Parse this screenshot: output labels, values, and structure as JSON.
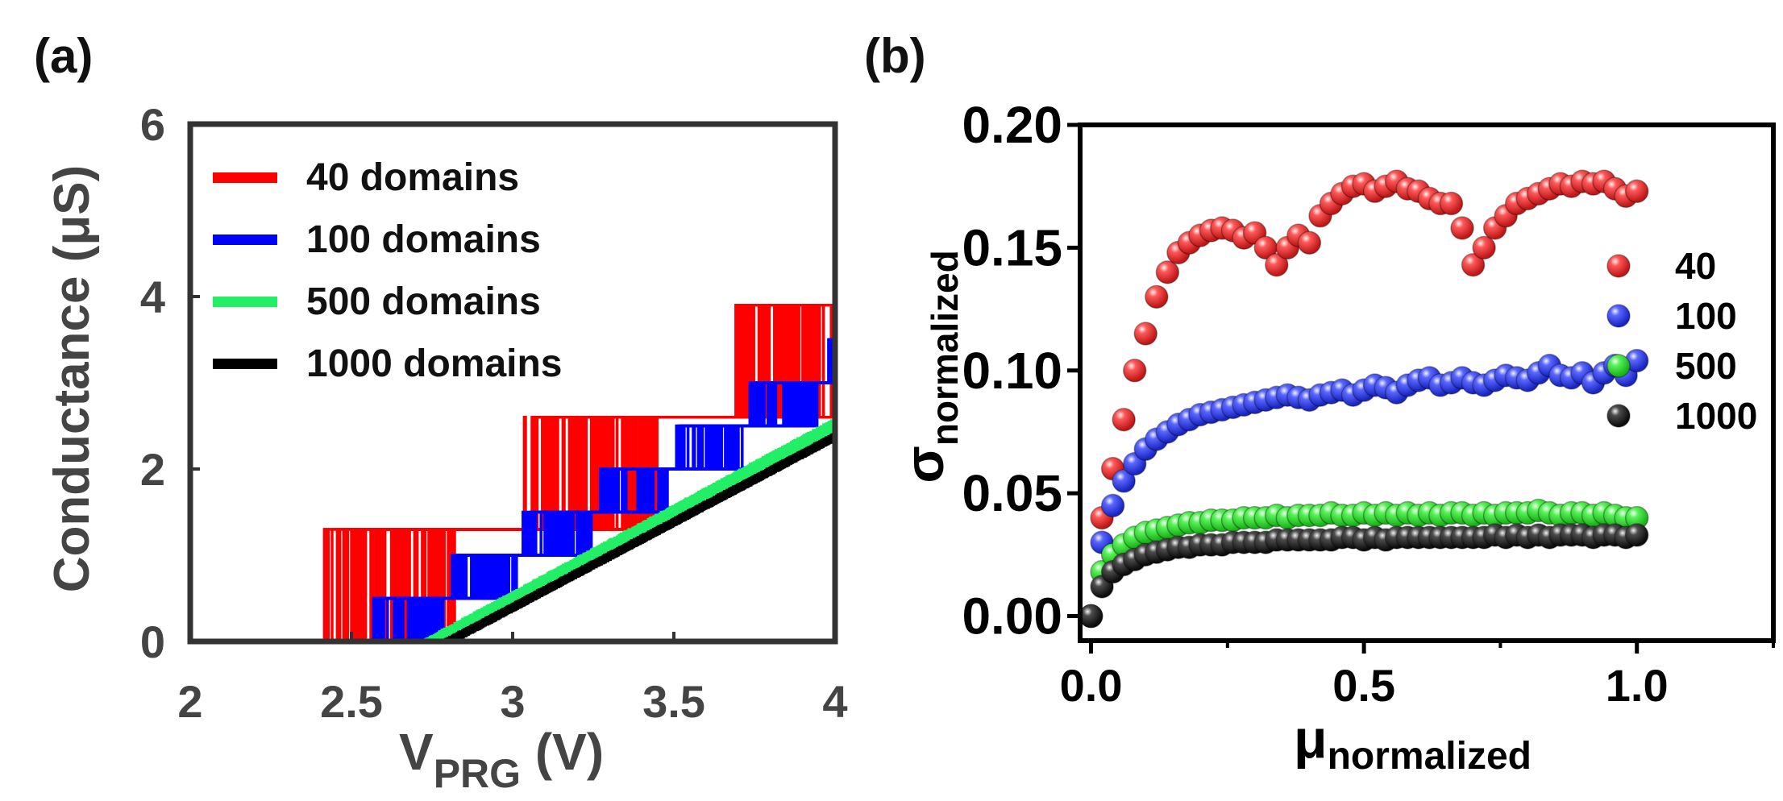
{
  "panel_a": {
    "label": "(a)",
    "chart_data": {
      "type": "line",
      "title": "",
      "xlabel_main": "V",
      "xlabel_sub": "PRG",
      "xlabel_unit": " (V)",
      "ylabel": "Conductance (μS)",
      "xlim": [
        2,
        4
      ],
      "ylim": [
        0,
        6
      ],
      "xticks": [
        2,
        2.5,
        3,
        3.5,
        4
      ],
      "xtick_labels": [
        "2",
        "2.5",
        "3",
        "3.5",
        "4"
      ],
      "yticks": [
        0,
        2,
        4,
        6
      ],
      "ytick_labels": [
        "0",
        "2",
        "4",
        "6"
      ],
      "legend_position": "top-left",
      "series": [
        {
          "name": "40 domains",
          "color": "#ff0000",
          "level_step": 1.3,
          "jitter": 0.55,
          "onset": 2.3,
          "slope": 3.3,
          "x_end": 4.0
        },
        {
          "name": "100 domains",
          "color": "#0000ff",
          "level_step": 0.5,
          "jitter": 0.32,
          "onset": 2.55,
          "slope": 3.25,
          "x_end": 4.0
        },
        {
          "name": "500 domains",
          "color": "#22ee66",
          "level_step": 0.1,
          "jitter": 0.1,
          "onset": 2.75,
          "slope": 3.05,
          "x_end": 4.0
        },
        {
          "name": "1000 domains",
          "color": "#000000",
          "level_step": 0.06,
          "jitter": 0.06,
          "onset": 2.8,
          "slope": 3.0,
          "x_end": 4.0
        }
      ]
    }
  },
  "panel_b": {
    "label": "(b)",
    "chart_data": {
      "type": "scatter",
      "title": "",
      "xlabel_main": "μ",
      "xlabel_sub": "normalized",
      "ylabel_main": "σ",
      "ylabel_sub": "normalized",
      "xlim": [
        -0.02,
        1.25
      ],
      "ylim": [
        -0.01,
        0.2
      ],
      "xticks": [
        0.0,
        0.5,
        1.0
      ],
      "xtick_labels": [
        "0.0",
        "0.5",
        "1.0"
      ],
      "yticks": [
        0.0,
        0.05,
        0.1,
        0.15,
        0.2
      ],
      "ytick_labels": [
        "0.00",
        "0.05",
        "0.10",
        "0.15",
        "0.20"
      ],
      "legend_position": "right",
      "series": [
        {
          "name": "40",
          "color": "#ff2020",
          "x": [
            0,
            0.02,
            0.04,
            0.06,
            0.08,
            0.1,
            0.12,
            0.14,
            0.16,
            0.18,
            0.2,
            0.22,
            0.24,
            0.26,
            0.28,
            0.3,
            0.32,
            0.34,
            0.36,
            0.38,
            0.4,
            0.42,
            0.44,
            0.46,
            0.48,
            0.5,
            0.52,
            0.54,
            0.56,
            0.58,
            0.6,
            0.62,
            0.64,
            0.66,
            0.68,
            0.7,
            0.72,
            0.74,
            0.76,
            0.78,
            0.8,
            0.82,
            0.84,
            0.86,
            0.88,
            0.9,
            0.92,
            0.94,
            0.96,
            0.98,
            1.0
          ],
          "y": [
            0,
            0.04,
            0.06,
            0.08,
            0.1,
            0.115,
            0.13,
            0.14,
            0.148,
            0.152,
            0.155,
            0.157,
            0.158,
            0.157,
            0.154,
            0.156,
            0.15,
            0.143,
            0.15,
            0.155,
            0.152,
            0.163,
            0.168,
            0.172,
            0.175,
            0.176,
            0.173,
            0.175,
            0.177,
            0.174,
            0.173,
            0.17,
            0.168,
            0.168,
            0.158,
            0.143,
            0.15,
            0.158,
            0.163,
            0.168,
            0.17,
            0.172,
            0.174,
            0.176,
            0.175,
            0.177,
            0.176,
            0.177,
            0.174,
            0.171,
            0.173
          ]
        },
        {
          "name": "100",
          "color": "#2233ff",
          "x": [
            0,
            0.02,
            0.04,
            0.06,
            0.08,
            0.1,
            0.12,
            0.14,
            0.16,
            0.18,
            0.2,
            0.22,
            0.24,
            0.26,
            0.28,
            0.3,
            0.32,
            0.34,
            0.36,
            0.38,
            0.4,
            0.42,
            0.44,
            0.46,
            0.48,
            0.5,
            0.52,
            0.54,
            0.56,
            0.58,
            0.6,
            0.62,
            0.64,
            0.66,
            0.68,
            0.7,
            0.72,
            0.74,
            0.76,
            0.78,
            0.8,
            0.82,
            0.84,
            0.86,
            0.88,
            0.9,
            0.92,
            0.94,
            0.96,
            0.98,
            1.0
          ],
          "y": [
            0,
            0.03,
            0.045,
            0.055,
            0.062,
            0.068,
            0.072,
            0.075,
            0.078,
            0.08,
            0.082,
            0.083,
            0.084,
            0.085,
            0.086,
            0.087,
            0.088,
            0.089,
            0.09,
            0.089,
            0.088,
            0.09,
            0.091,
            0.092,
            0.09,
            0.092,
            0.094,
            0.093,
            0.091,
            0.094,
            0.096,
            0.097,
            0.094,
            0.095,
            0.097,
            0.095,
            0.094,
            0.096,
            0.098,
            0.097,
            0.096,
            0.099,
            0.102,
            0.098,
            0.097,
            0.099,
            0.095,
            0.099,
            0.102,
            0.098,
            0.104
          ]
        },
        {
          "name": "500",
          "color": "#22ee22",
          "x": [
            0,
            0.02,
            0.04,
            0.06,
            0.08,
            0.1,
            0.12,
            0.14,
            0.16,
            0.18,
            0.2,
            0.22,
            0.24,
            0.26,
            0.28,
            0.3,
            0.32,
            0.34,
            0.36,
            0.38,
            0.4,
            0.42,
            0.44,
            0.46,
            0.48,
            0.5,
            0.52,
            0.54,
            0.56,
            0.58,
            0.6,
            0.62,
            0.64,
            0.66,
            0.68,
            0.7,
            0.72,
            0.74,
            0.76,
            0.78,
            0.8,
            0.82,
            0.84,
            0.86,
            0.88,
            0.9,
            0.92,
            0.94,
            0.96,
            0.98,
            1.0
          ],
          "y": [
            0,
            0.018,
            0.025,
            0.029,
            0.032,
            0.034,
            0.035,
            0.036,
            0.037,
            0.038,
            0.038,
            0.039,
            0.039,
            0.039,
            0.04,
            0.04,
            0.04,
            0.041,
            0.04,
            0.041,
            0.041,
            0.041,
            0.042,
            0.041,
            0.041,
            0.042,
            0.041,
            0.042,
            0.041,
            0.042,
            0.041,
            0.042,
            0.041,
            0.042,
            0.042,
            0.041,
            0.042,
            0.041,
            0.042,
            0.042,
            0.042,
            0.043,
            0.042,
            0.041,
            0.042,
            0.042,
            0.041,
            0.042,
            0.041,
            0.04,
            0.04
          ]
        },
        {
          "name": "1000",
          "color": "#111111",
          "x": [
            0,
            0.02,
            0.04,
            0.06,
            0.08,
            0.1,
            0.12,
            0.14,
            0.16,
            0.18,
            0.2,
            0.22,
            0.24,
            0.26,
            0.28,
            0.3,
            0.32,
            0.34,
            0.36,
            0.38,
            0.4,
            0.42,
            0.44,
            0.46,
            0.48,
            0.5,
            0.52,
            0.54,
            0.56,
            0.58,
            0.6,
            0.62,
            0.64,
            0.66,
            0.68,
            0.7,
            0.72,
            0.74,
            0.76,
            0.78,
            0.8,
            0.82,
            0.84,
            0.86,
            0.88,
            0.9,
            0.92,
            0.94,
            0.96,
            0.98,
            1.0
          ],
          "y": [
            0,
            0.012,
            0.018,
            0.021,
            0.023,
            0.025,
            0.026,
            0.027,
            0.028,
            0.028,
            0.029,
            0.029,
            0.029,
            0.03,
            0.03,
            0.03,
            0.03,
            0.031,
            0.031,
            0.031,
            0.031,
            0.031,
            0.031,
            0.032,
            0.032,
            0.031,
            0.032,
            0.031,
            0.032,
            0.032,
            0.032,
            0.032,
            0.032,
            0.032,
            0.032,
            0.032,
            0.032,
            0.033,
            0.032,
            0.033,
            0.032,
            0.033,
            0.032,
            0.033,
            0.033,
            0.033,
            0.032,
            0.033,
            0.033,
            0.032,
            0.033
          ]
        }
      ]
    }
  }
}
